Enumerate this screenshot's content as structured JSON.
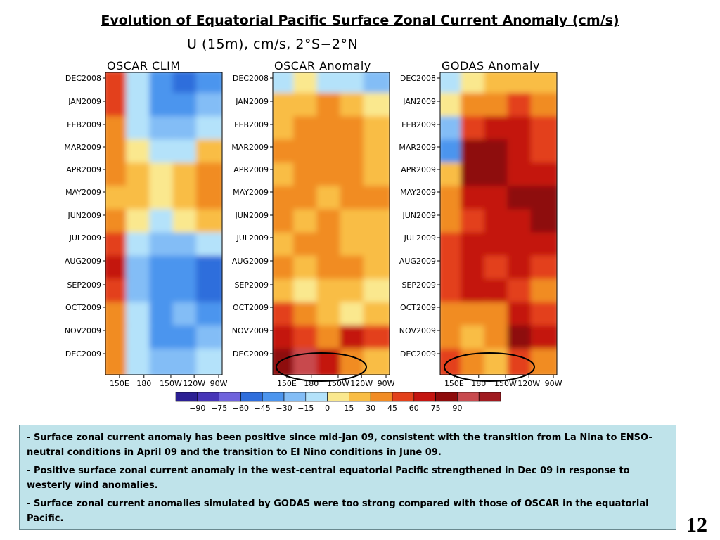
{
  "slide": {
    "title": "Evolution of Equatorial Pacific Surface Zonal Current Anomaly (cm/s)",
    "page_number": "12"
  },
  "figure": {
    "title": "U (15m), cm/s, 2°S−2°N"
  },
  "chart_data": [
    {
      "type": "heatmap",
      "title": "OSCAR CLIM",
      "y_tick_labels": [
        "DEC2008",
        "JAN2009",
        "FEB2009",
        "MAR2009",
        "APR2009",
        "MAY2009",
        "JUN2009",
        "JUL2009",
        "AUG2009",
        "SEP2009",
        "OCT2009",
        "NOV2009",
        "DEC2009"
      ],
      "x_tick_labels": [
        "150E",
        "180",
        "150W",
        "120W",
        "90W"
      ],
      "x_range": [
        "140E",
        "90W"
      ],
      "y_range": [
        "DEC2008",
        "DEC2009"
      ],
      "grid": false,
      "values_by_time": [
        [
          45,
          -15,
          -45,
          -60,
          -45
        ],
        [
          45,
          -15,
          -45,
          -45,
          -30
        ],
        [
          30,
          -15,
          -30,
          -30,
          -15
        ],
        [
          30,
          0,
          -15,
          -15,
          15
        ],
        [
          30,
          15,
          0,
          15,
          30
        ],
        [
          15,
          15,
          0,
          15,
          30
        ],
        [
          30,
          0,
          -15,
          0,
          15
        ],
        [
          45,
          -15,
          -30,
          -30,
          -15
        ],
        [
          60,
          -30,
          -45,
          -45,
          -60
        ],
        [
          45,
          -30,
          -45,
          -45,
          -60
        ],
        [
          30,
          -15,
          -45,
          -30,
          -45
        ],
        [
          30,
          -15,
          -45,
          -45,
          -30
        ],
        [
          30,
          -15,
          -30,
          -30,
          -15
        ]
      ]
    },
    {
      "type": "heatmap",
      "title": "OSCAR Anomaly",
      "y_tick_labels": [
        "DEC2008",
        "JAN2009",
        "FEB2009",
        "MAR2009",
        "APR2009",
        "MAY2009",
        "JUN2009",
        "JUL2009",
        "AUG2009",
        "SEP2009",
        "OCT2009",
        "NOV2009",
        "DEC2009"
      ],
      "x_tick_labels": [
        "150E",
        "180",
        "150W",
        "120W",
        "90W"
      ],
      "x_range": [
        "140E",
        "90W"
      ],
      "y_range": [
        "DEC2008",
        "DEC2009"
      ],
      "grid": false,
      "values_by_time": [
        [
          -15,
          0,
          -15,
          -15,
          -30
        ],
        [
          15,
          15,
          30,
          15,
          0
        ],
        [
          15,
          30,
          30,
          30,
          15
        ],
        [
          30,
          30,
          30,
          30,
          15
        ],
        [
          15,
          30,
          30,
          30,
          15
        ],
        [
          30,
          30,
          15,
          30,
          30
        ],
        [
          30,
          15,
          30,
          15,
          15
        ],
        [
          15,
          30,
          30,
          15,
          15
        ],
        [
          30,
          15,
          30,
          30,
          15
        ],
        [
          15,
          0,
          15,
          15,
          0
        ],
        [
          45,
          30,
          15,
          0,
          15
        ],
        [
          60,
          45,
          30,
          60,
          45
        ],
        [
          75,
          90,
          60,
          30,
          15
        ]
      ]
    },
    {
      "type": "heatmap",
      "title": "GODAS Anomaly",
      "y_tick_labels": [
        "DEC2008",
        "JAN2009",
        "FEB2009",
        "MAR2009",
        "APR2009",
        "MAY2009",
        "JUN2009",
        "JUL2009",
        "AUG2009",
        "SEP2009",
        "OCT2009",
        "NOV2009",
        "DEC2009"
      ],
      "x_tick_labels": [
        "150E",
        "180",
        "150W",
        "120W",
        "90W"
      ],
      "x_range": [
        "140E",
        "90W"
      ],
      "y_range": [
        "DEC2008",
        "DEC2009"
      ],
      "grid": false,
      "values_by_time": [
        [
          -15,
          0,
          15,
          15,
          15
        ],
        [
          0,
          30,
          30,
          45,
          30
        ],
        [
          -30,
          45,
          60,
          60,
          45
        ],
        [
          -45,
          75,
          75,
          60,
          45
        ],
        [
          15,
          75,
          75,
          60,
          60
        ],
        [
          30,
          60,
          60,
          75,
          75
        ],
        [
          30,
          45,
          60,
          60,
          75
        ],
        [
          45,
          60,
          60,
          60,
          60
        ],
        [
          45,
          60,
          45,
          60,
          45
        ],
        [
          45,
          60,
          60,
          45,
          30
        ],
        [
          30,
          30,
          30,
          60,
          45
        ],
        [
          30,
          15,
          30,
          75,
          60
        ],
        [
          45,
          30,
          15,
          45,
          30
        ]
      ]
    }
  ],
  "colorbar": {
    "tick_labels": [
      "−90",
      "−75",
      "−60",
      "−45",
      "−30",
      "−15",
      "0",
      "15",
      "30",
      "45",
      "60",
      "75",
      "90"
    ],
    "colors": [
      "#2b1f93",
      "#4735b8",
      "#6f63dc",
      "#2f6edc",
      "#4c95ee",
      "#83bdf6",
      "#b4e2fa",
      "#fae88e",
      "#f9bd45",
      "#f18c24",
      "#e3411b",
      "#c41510",
      "#8e0b0b",
      "#c84a4e",
      "#a01a1f"
    ]
  },
  "notes": [
    "Surface zonal current anomaly has been positive since mid-Jan 09, consistent with the transition from La Nina to ENSO-neutral conditions in April 09 and the transition to El Nino conditions in June 09.",
    "Positive surface zonal current anomaly in the west-central equatorial Pacific strengthened in Dec 09 in response to westerly wind anomalies.",
    "Surface zonal current anomalies simulated by GODAS were too strong compared with those of OSCAR in the equatorial Pacific."
  ],
  "note_bullet": "-"
}
